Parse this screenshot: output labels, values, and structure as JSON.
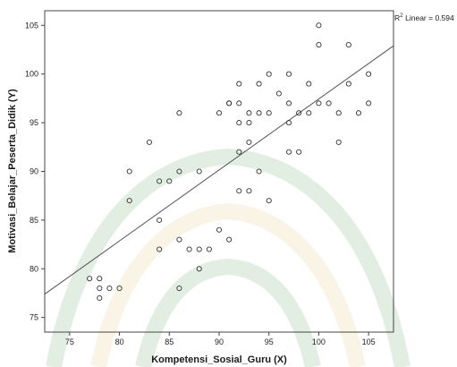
{
  "chart_data": {
    "type": "scatter",
    "title": "",
    "xlabel": "Kompetensi_Sosial_Guru (X)",
    "ylabel": "Motivasi_Belajar_Peserta_Didik (Y)",
    "xlim": [
      72.5,
      107.5
    ],
    "ylim": [
      73.5,
      106.5
    ],
    "xticks": [
      75,
      80,
      85,
      90,
      95,
      100,
      105
    ],
    "yticks": [
      75,
      80,
      85,
      90,
      95,
      100,
      105
    ],
    "grid": false,
    "legend": "none",
    "annotation": {
      "prefix": "R",
      "superscript": "2",
      "suffix": " Linear = 0.594"
    },
    "fit_line": {
      "x_start": 72.5,
      "y_start": 77.4,
      "x_end": 107.5,
      "y_end": 102.9
    },
    "points": [
      {
        "x": 77,
        "y": 79
      },
      {
        "x": 78,
        "y": 79
      },
      {
        "x": 78,
        "y": 78
      },
      {
        "x": 78,
        "y": 77
      },
      {
        "x": 79,
        "y": 78
      },
      {
        "x": 80,
        "y": 78
      },
      {
        "x": 81,
        "y": 87
      },
      {
        "x": 81,
        "y": 90
      },
      {
        "x": 83,
        "y": 93
      },
      {
        "x": 84,
        "y": 89
      },
      {
        "x": 84,
        "y": 85
      },
      {
        "x": 84,
        "y": 82
      },
      {
        "x": 85,
        "y": 89
      },
      {
        "x": 86,
        "y": 96
      },
      {
        "x": 86,
        "y": 90
      },
      {
        "x": 86,
        "y": 83
      },
      {
        "x": 86,
        "y": 78
      },
      {
        "x": 87,
        "y": 82
      },
      {
        "x": 88,
        "y": 90
      },
      {
        "x": 88,
        "y": 82
      },
      {
        "x": 88,
        "y": 80
      },
      {
        "x": 89,
        "y": 82
      },
      {
        "x": 90,
        "y": 96
      },
      {
        "x": 90,
        "y": 84
      },
      {
        "x": 91,
        "y": 97
      },
      {
        "x": 91,
        "y": 97
      },
      {
        "x": 91,
        "y": 83
      },
      {
        "x": 92,
        "y": 99
      },
      {
        "x": 92,
        "y": 97
      },
      {
        "x": 92,
        "y": 95
      },
      {
        "x": 92,
        "y": 92
      },
      {
        "x": 92,
        "y": 88
      },
      {
        "x": 93,
        "y": 96
      },
      {
        "x": 93,
        "y": 95
      },
      {
        "x": 93,
        "y": 93
      },
      {
        "x": 93,
        "y": 88
      },
      {
        "x": 94,
        "y": 99
      },
      {
        "x": 94,
        "y": 96
      },
      {
        "x": 94,
        "y": 90
      },
      {
        "x": 95,
        "y": 100
      },
      {
        "x": 95,
        "y": 96
      },
      {
        "x": 95,
        "y": 87
      },
      {
        "x": 96,
        "y": 98
      },
      {
        "x": 97,
        "y": 100
      },
      {
        "x": 97,
        "y": 97
      },
      {
        "x": 97,
        "y": 95
      },
      {
        "x": 97,
        "y": 92
      },
      {
        "x": 98,
        "y": 96
      },
      {
        "x": 98,
        "y": 92
      },
      {
        "x": 99,
        "y": 99
      },
      {
        "x": 99,
        "y": 96
      },
      {
        "x": 100,
        "y": 105
      },
      {
        "x": 100,
        "y": 103
      },
      {
        "x": 100,
        "y": 97
      },
      {
        "x": 101,
        "y": 97
      },
      {
        "x": 102,
        "y": 96
      },
      {
        "x": 102,
        "y": 93
      },
      {
        "x": 103,
        "y": 103
      },
      {
        "x": 103,
        "y": 99
      },
      {
        "x": 104,
        "y": 96
      },
      {
        "x": 105,
        "y": 100
      },
      {
        "x": 105,
        "y": 97
      }
    ]
  },
  "theme": {
    "plot_border": "#444444",
    "point_stroke": "#333333",
    "fit_line": "#555555",
    "watermark_green": "#7fb37f",
    "watermark_gold": "#e6cf8f"
  }
}
